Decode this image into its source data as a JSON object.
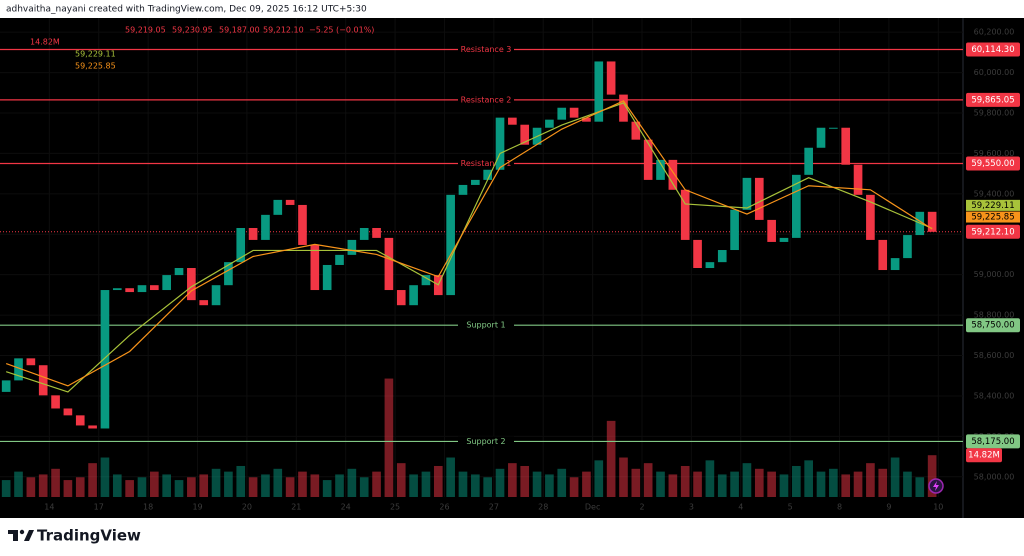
{
  "chart_data": {
    "type": "candlestick",
    "header": "adhvaitha_nayani created with TradingView.com, Dec 09, 2025 16:12 UTC+5:30",
    "brand": "TradingView",
    "legend_ohlc": [
      "59,219.05",
      "59,230.95",
      "59,187.00",
      "59,212.10",
      "−5.25 (−0.01%)"
    ],
    "legend_volume": "14.82M",
    "first_open": 58420,
    "close": [
      58477,
      58586,
      58552,
      58403,
      58338,
      58304,
      58254,
      58239,
      58924,
      58933,
      58914,
      58948,
      58924,
      58998,
      59033,
      58874,
      58849,
      58948,
      59062,
      59231,
      59172,
      59296,
      59370,
      59345,
      59147,
      58924,
      59048,
      59098,
      59172,
      59231,
      59182,
      58924,
      58849,
      58948,
      58998,
      58899,
      59395,
      59444,
      59469,
      59519,
      59777,
      59742,
      59643,
      59727,
      59767,
      59826,
      59777,
      59757,
      60055,
      59891,
      59757,
      59668,
      59469,
      59568,
      59420,
      59172,
      59033,
      59062,
      59122,
      59321,
      59479,
      59271,
      59162,
      59182,
      59494,
      59628,
      59727,
      59727,
      59544,
      59395,
      59172,
      59023,
      59082,
      59196,
      59311,
      59212.1
    ],
    "last_close_label": "59,212.10",
    "volume": [
      6,
      9,
      7,
      8,
      10,
      6,
      7,
      12,
      14,
      8,
      6,
      7,
      9,
      8,
      6,
      7,
      8,
      10,
      9,
      11,
      7,
      8,
      10,
      7,
      9,
      8,
      6,
      8,
      10,
      7,
      9,
      42,
      12,
      8,
      9,
      11,
      14,
      9,
      8,
      7,
      10,
      12,
      11,
      9,
      8,
      10,
      7,
      9,
      13,
      27,
      14,
      10,
      12,
      9,
      8,
      11,
      9,
      13,
      8,
      9,
      12,
      10,
      9,
      8,
      11,
      13,
      9,
      10,
      8,
      9,
      12,
      10,
      14,
      9,
      7,
      14.82
    ],
    "volume_last_label": "14.82M",
    "vlim": [
      0,
      50
    ],
    "up_color": "#089981",
    "down_color": "#f23645",
    "series": [
      {
        "color": "#a8c23a",
        "x": [
          0,
          5,
          10,
          15,
          20,
          25,
          30,
          35,
          40,
          45,
          50,
          55,
          60,
          65,
          70,
          75
        ],
        "values": [
          58520,
          58420,
          58700,
          58940,
          59120,
          59120,
          59120,
          58950,
          59600,
          59740,
          59850,
          59350,
          59330,
          59480,
          59360,
          59229.11
        ],
        "last_label": "59,229.11"
      },
      {
        "color": "#f7931a",
        "x": [
          0,
          5,
          10,
          15,
          20,
          25,
          30,
          35,
          40,
          45,
          50,
          55,
          60,
          65,
          70,
          75
        ],
        "values": [
          58560,
          58450,
          58620,
          58920,
          59090,
          59150,
          59100,
          58990,
          59530,
          59720,
          59860,
          59420,
          59300,
          59440,
          59420,
          59225.85
        ],
        "last_label": "59,225.85"
      }
    ],
    "levels": {
      "names": [
        "Resistance 3",
        "Resistance 2",
        "Resistance 1",
        "Support 1",
        "Support 2"
      ],
      "values": [
        60114.3,
        59865.05,
        59550,
        58750,
        58175
      ],
      "value_labels": [
        "60,114.30",
        "59,865.05",
        "59,550.00",
        "58,750.00",
        "58,175.00"
      ],
      "colors": [
        "#f23645",
        "#f23645",
        "#f23645",
        "#81c784",
        "#81c784"
      ]
    },
    "xlim": [
      0,
      78
    ],
    "xticks": [
      {
        "value": 4,
        "label": "14"
      },
      {
        "value": 8,
        "label": "17"
      },
      {
        "value": 12,
        "label": "18"
      },
      {
        "value": 16,
        "label": "19"
      },
      {
        "value": 20,
        "label": "20"
      },
      {
        "value": 24,
        "label": "21"
      },
      {
        "value": 28,
        "label": "24"
      },
      {
        "value": 32,
        "label": "25"
      },
      {
        "value": 36,
        "label": "26"
      },
      {
        "value": 40,
        "label": "27"
      },
      {
        "value": 44,
        "label": "28"
      },
      {
        "value": 48,
        "label": "Dec"
      },
      {
        "value": 52,
        "label": "2"
      },
      {
        "value": 56,
        "label": "3"
      },
      {
        "value": 60,
        "label": "4"
      },
      {
        "value": 64,
        "label": "5"
      },
      {
        "value": 68,
        "label": "8"
      },
      {
        "value": 72,
        "label": "9"
      },
      {
        "value": 76,
        "label": "10"
      }
    ],
    "ylim": [
      57900,
      60270
    ],
    "yticks": [
      {
        "value": 58000,
        "label": "58,000.00"
      },
      {
        "value": 58200,
        "label": "58,200.00"
      },
      {
        "value": 58400,
        "label": "58,400.00"
      },
      {
        "value": 58600,
        "label": "58,600.00"
      },
      {
        "value": 58800,
        "label": "58,800.00"
      },
      {
        "value": 59000,
        "label": "59,000.00"
      },
      {
        "value": 59200,
        "label": "59,200.00"
      },
      {
        "value": 59400,
        "label": "59,400.00"
      },
      {
        "value": 59600,
        "label": "59,600.00"
      },
      {
        "value": 59800,
        "label": "59,800.00"
      },
      {
        "value": 60000,
        "label": "60,000.00"
      },
      {
        "value": 60200,
        "label": "60,200.00"
      }
    ]
  }
}
